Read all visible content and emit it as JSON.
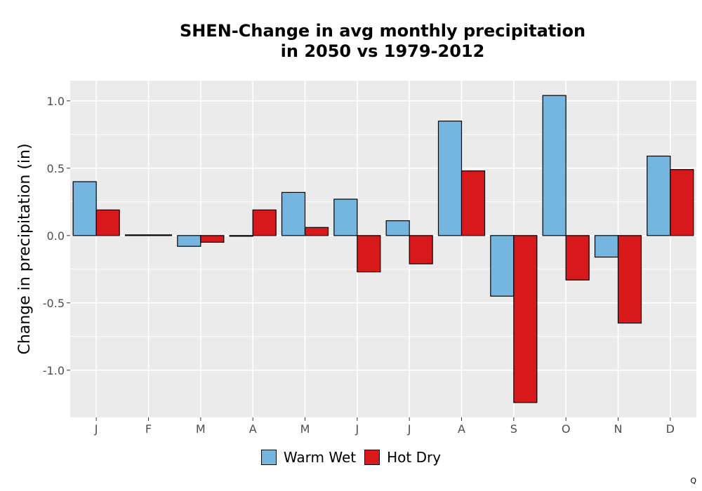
{
  "colors": {
    "warm_wet": "#74b6e0",
    "hot_dry": "#d7191c",
    "panel": "#ebebeb",
    "grid": "#ffffff"
  },
  "corner_mark": "Q",
  "chart_data": {
    "type": "bar",
    "title_line1": "SHEN-Change in avg monthly precipitation",
    "title_line2": "in 2050 vs 1979-2012",
    "xlabel": "",
    "ylabel": "Change in precipitation (in)",
    "categories": [
      "J",
      "F",
      "M",
      "A",
      "M",
      "J",
      "J",
      "A",
      "S",
      "O",
      "N",
      "D"
    ],
    "ylim": [
      -1.35,
      1.15
    ],
    "yticks": [
      1.0,
      0.5,
      0.0,
      -0.5,
      -1.0
    ],
    "ytick_labels": [
      "1.0",
      "0.5",
      "0.0",
      "-0.5",
      "-1.0"
    ],
    "grid": true,
    "legend_position": "bottom",
    "series": [
      {
        "name": "Warm Wet",
        "color": "#74b6e0",
        "values": [
          0.4,
          0.005,
          -0.08,
          -0.005,
          0.32,
          0.27,
          0.11,
          0.85,
          -0.45,
          1.04,
          -0.16,
          0.59
        ]
      },
      {
        "name": "Hot Dry",
        "color": "#d7191c",
        "values": [
          0.19,
          0.005,
          -0.05,
          0.19,
          0.06,
          -0.27,
          -0.21,
          0.48,
          -1.24,
          -0.33,
          -0.65,
          0.49
        ]
      }
    ]
  }
}
